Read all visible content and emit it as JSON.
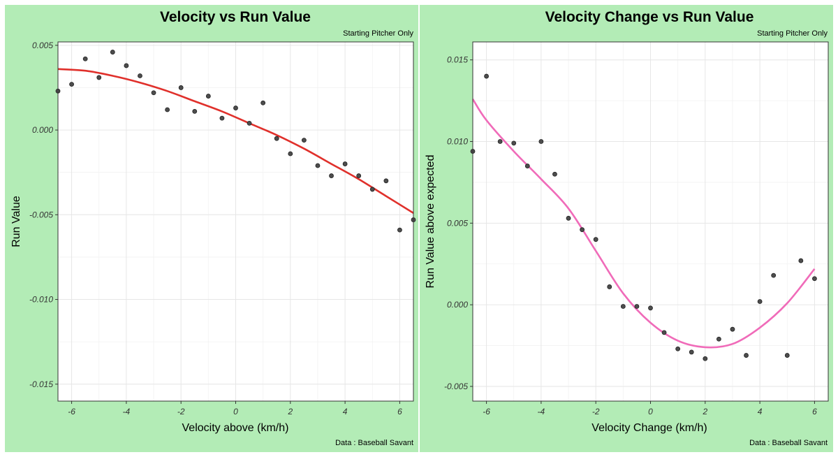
{
  "chart_data": [
    {
      "type": "scatter",
      "title": "Velocity vs Run Value",
      "subtitle": "Starting Pitcher Only",
      "caption": "Data : Baseball Savant",
      "xlabel": "Velocity above (km/h)",
      "ylabel": "Run Value",
      "xlim": [
        -6.5,
        6.5
      ],
      "ylim": [
        -0.016,
        0.0052
      ],
      "x_ticks": [
        -6,
        -4,
        -2,
        0,
        2,
        4,
        6
      ],
      "y_ticks": [
        0.005,
        0.0,
        -0.005,
        -0.01,
        -0.015
      ],
      "y_tick_labels": [
        "0.005",
        "0.000",
        "-0.005",
        "-0.010",
        "-0.015"
      ],
      "grid": true,
      "fit_color": "#e0302b",
      "points": [
        {
          "x": -6.5,
          "y": 0.0023
        },
        {
          "x": -6.0,
          "y": 0.0027
        },
        {
          "x": -5.5,
          "y": 0.0042
        },
        {
          "x": -5.0,
          "y": 0.0031
        },
        {
          "x": -4.5,
          "y": 0.0046
        },
        {
          "x": -4.0,
          "y": 0.0038
        },
        {
          "x": -3.5,
          "y": 0.0032
        },
        {
          "x": -3.0,
          "y": 0.0022
        },
        {
          "x": -2.5,
          "y": 0.0012
        },
        {
          "x": -2.0,
          "y": 0.0025
        },
        {
          "x": -1.5,
          "y": 0.0011
        },
        {
          "x": -1.0,
          "y": 0.002
        },
        {
          "x": -0.5,
          "y": 0.0007
        },
        {
          "x": 0.0,
          "y": 0.0013
        },
        {
          "x": 0.5,
          "y": 0.0004
        },
        {
          "x": 1.0,
          "y": 0.0016
        },
        {
          "x": 1.5,
          "y": -0.0005
        },
        {
          "x": 2.0,
          "y": -0.0014
        },
        {
          "x": 2.5,
          "y": -0.0006
        },
        {
          "x": 3.0,
          "y": -0.0021
        },
        {
          "x": 3.5,
          "y": -0.0027
        },
        {
          "x": 4.0,
          "y": -0.002
        },
        {
          "x": 4.5,
          "y": -0.0027
        },
        {
          "x": 5.0,
          "y": -0.0035
        },
        {
          "x": 5.5,
          "y": -0.003
        },
        {
          "x": 6.0,
          "y": -0.0059
        },
        {
          "x": 6.5,
          "y": -0.0053
        }
      ],
      "fit": [
        {
          "x": -6.5,
          "y": 0.0036
        },
        {
          "x": -5.5,
          "y": 0.0035
        },
        {
          "x": -4.5,
          "y": 0.0032
        },
        {
          "x": -3.5,
          "y": 0.0028
        },
        {
          "x": -2.5,
          "y": 0.0023
        },
        {
          "x": -1.5,
          "y": 0.0017
        },
        {
          "x": -0.5,
          "y": 0.0011
        },
        {
          "x": 0.5,
          "y": 0.0004
        },
        {
          "x": 1.5,
          "y": -0.0003
        },
        {
          "x": 2.5,
          "y": -0.0011
        },
        {
          "x": 3.5,
          "y": -0.002
        },
        {
          "x": 4.5,
          "y": -0.0029
        },
        {
          "x": 5.5,
          "y": -0.0039
        },
        {
          "x": 6.5,
          "y": -0.0049
        }
      ]
    },
    {
      "type": "scatter",
      "title": "Velocity Change vs Run Value",
      "subtitle": "Starting Pitcher Only",
      "caption": "Data : Baseball Savant",
      "xlabel": "Velocity Change (km/h)",
      "ylabel": "Run Value above expected",
      "xlim": [
        -6.5,
        6.5
      ],
      "ylim": [
        -0.0059,
        0.0161
      ],
      "x_ticks": [
        -6,
        -4,
        -2,
        0,
        2,
        4,
        6
      ],
      "y_ticks": [
        0.015,
        0.01,
        0.005,
        0.0,
        -0.005
      ],
      "y_tick_labels": [
        "0.015",
        "0.010",
        "0.005",
        "0.000",
        "-0.005"
      ],
      "grid": true,
      "fit_color": "#f06bb9",
      "points": [
        {
          "x": -6.5,
          "y": 0.0094
        },
        {
          "x": -6.0,
          "y": 0.014
        },
        {
          "x": -5.5,
          "y": 0.01
        },
        {
          "x": -5.0,
          "y": 0.0099
        },
        {
          "x": -4.5,
          "y": 0.0085
        },
        {
          "x": -4.0,
          "y": 0.01
        },
        {
          "x": -3.5,
          "y": 0.008
        },
        {
          "x": -3.0,
          "y": 0.0053
        },
        {
          "x": -2.5,
          "y": 0.0046
        },
        {
          "x": -2.0,
          "y": 0.004
        },
        {
          "x": -1.5,
          "y": 0.0011
        },
        {
          "x": -1.0,
          "y": -0.0001
        },
        {
          "x": -0.5,
          "y": -0.0001
        },
        {
          "x": 0.0,
          "y": -0.0002
        },
        {
          "x": 0.5,
          "y": -0.0017
        },
        {
          "x": 1.0,
          "y": -0.0027
        },
        {
          "x": 1.5,
          "y": -0.0029
        },
        {
          "x": 2.0,
          "y": -0.0033
        },
        {
          "x": 2.5,
          "y": -0.0021
        },
        {
          "x": 3.0,
          "y": -0.0015
        },
        {
          "x": 3.5,
          "y": -0.0031
        },
        {
          "x": 4.0,
          "y": 0.0002
        },
        {
          "x": 4.5,
          "y": 0.0018
        },
        {
          "x": 5.0,
          "y": -0.0031
        },
        {
          "x": 5.5,
          "y": 0.0027
        },
        {
          "x": 6.0,
          "y": 0.0016
        }
      ],
      "fit": [
        {
          "x": -6.5,
          "y": 0.0126
        },
        {
          "x": -6.0,
          "y": 0.0113
        },
        {
          "x": -5.0,
          "y": 0.0094
        },
        {
          "x": -4.0,
          "y": 0.0077
        },
        {
          "x": -3.0,
          "y": 0.0059
        },
        {
          "x": -2.0,
          "y": 0.0033
        },
        {
          "x": -1.0,
          "y": 0.0007
        },
        {
          "x": 0.0,
          "y": -0.0011
        },
        {
          "x": 1.0,
          "y": -0.0022
        },
        {
          "x": 2.0,
          "y": -0.0026
        },
        {
          "x": 3.0,
          "y": -0.0024
        },
        {
          "x": 4.0,
          "y": -0.0014
        },
        {
          "x": 5.0,
          "y": 0.0001
        },
        {
          "x": 6.0,
          "y": 0.0022
        }
      ]
    }
  ]
}
